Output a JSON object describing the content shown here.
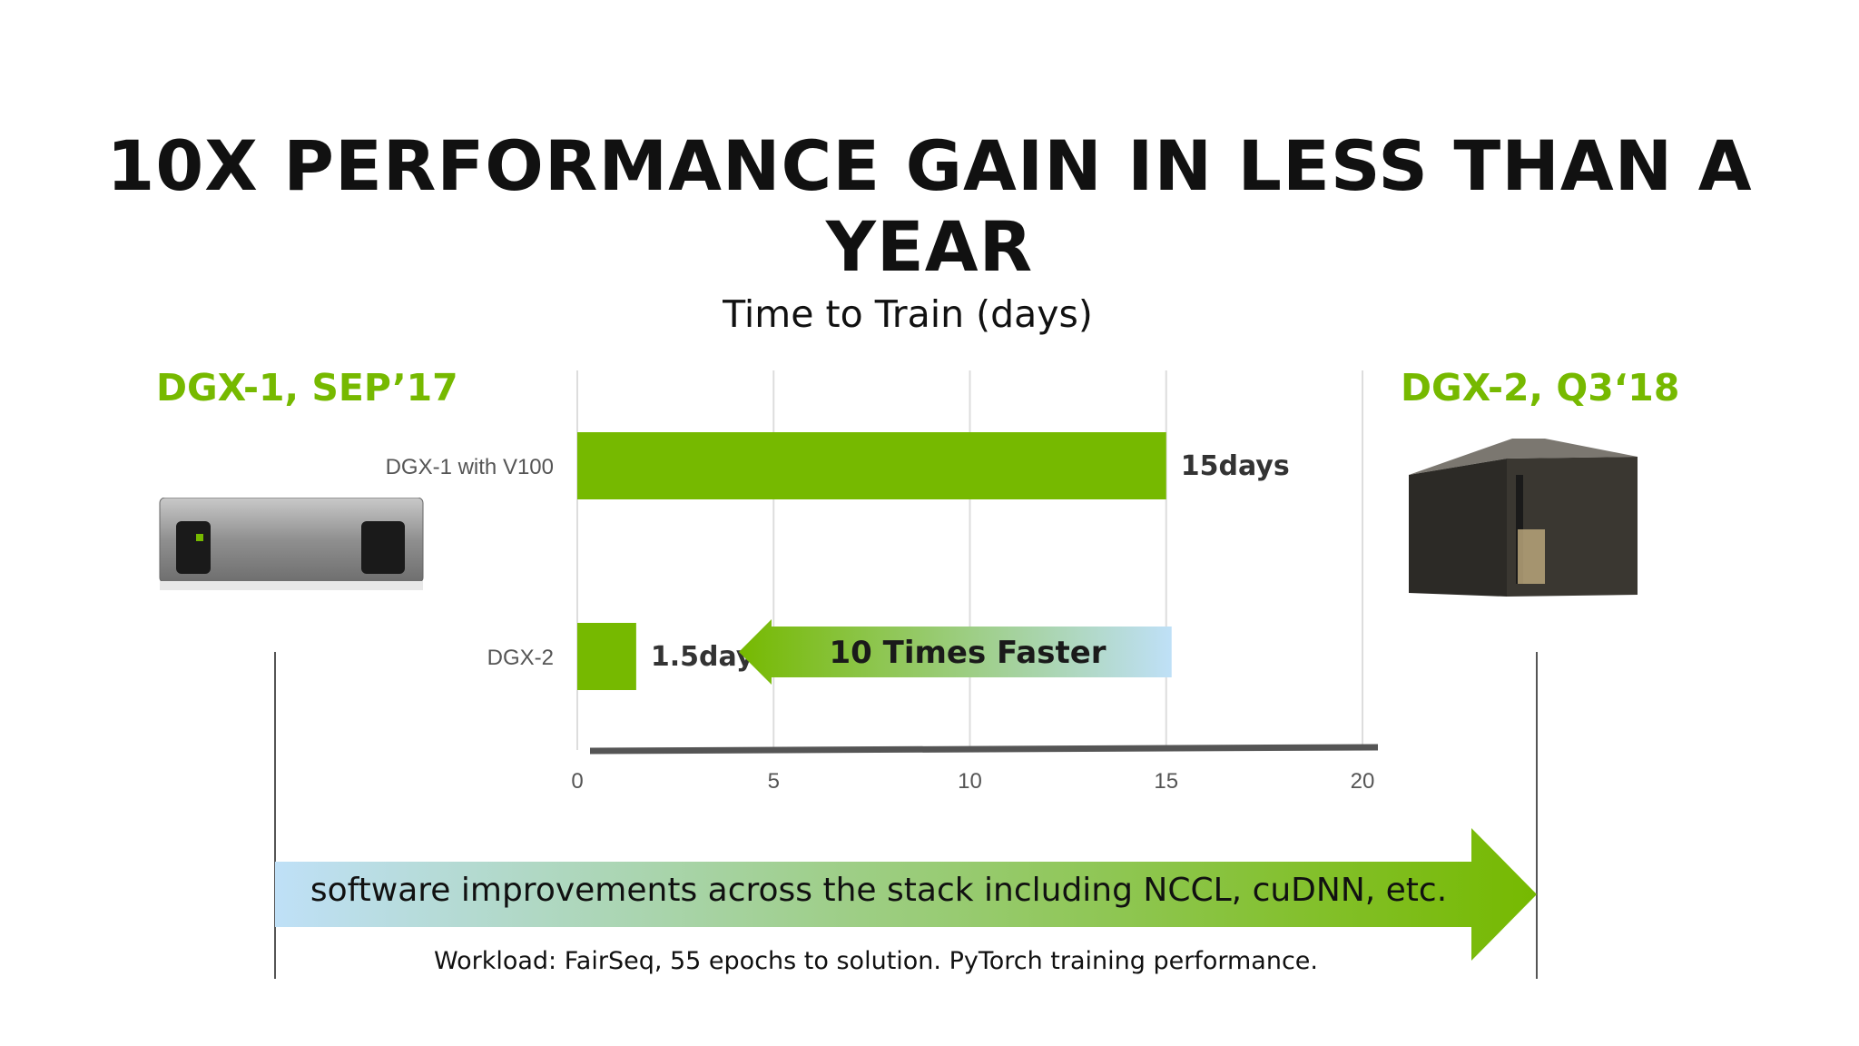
{
  "slide": {
    "title": "10X PERFORMANCE GAIN IN LESS THAN A YEAR",
    "left_machine_label": "DGX-1, SEP’17",
    "right_machine_label": "DGX-2, Q3‘18",
    "software_arrow_text": "software improvements across the stack including NCCL, cuDNN, etc.",
    "footnote": "Workload: FairSeq, 55 epochs to solution. PyTorch training performance.",
    "speedup_arrow_text": "10 Times Faster",
    "colors": {
      "accent_green": "#76b900",
      "arrow_blue": "#bfe0f7",
      "axis": "#555555",
      "grid": "#dddddd"
    },
    "icons": {
      "left_image": "dgx1-server-icon",
      "right_image": "dgx2-server-icon"
    }
  },
  "chart_data": {
    "type": "bar",
    "orientation": "horizontal",
    "title": "Time to Train (days)",
    "categories": [
      "DGX-1 with V100",
      "DGX-2"
    ],
    "values": [
      15,
      1.5
    ],
    "value_labels": [
      "15days",
      "1.5days"
    ],
    "xlim": [
      0,
      20
    ],
    "xticks": [
      0,
      5,
      10,
      15,
      20
    ],
    "grid": true,
    "legend": "none",
    "color": "#76b900"
  }
}
